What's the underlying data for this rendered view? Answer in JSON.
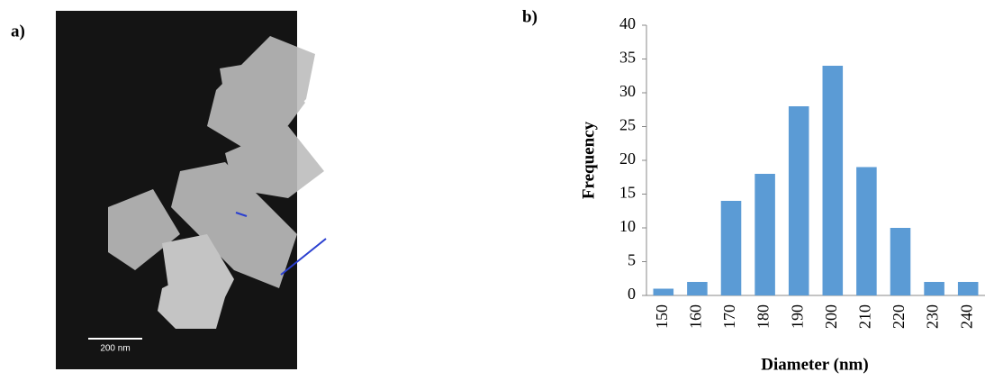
{
  "panel_labels": [
    "a)",
    "b)"
  ],
  "image": {
    "scale_bar": "200 nm"
  },
  "chart_data": {
    "type": "bar",
    "categories": [
      "150",
      "160",
      "170",
      "180",
      "190",
      "200",
      "210",
      "220",
      "230",
      "240"
    ],
    "values": [
      1,
      2,
      14,
      18,
      28,
      34,
      19,
      10,
      2,
      2
    ],
    "color": "#5b9bd5",
    "xlabel": "Diameter (nm)",
    "ylabel": "Frequency",
    "ylim": [
      0,
      40
    ],
    "yticks": [
      0,
      5,
      10,
      15,
      20,
      25,
      30,
      35,
      40
    ],
    "grid": false
  }
}
